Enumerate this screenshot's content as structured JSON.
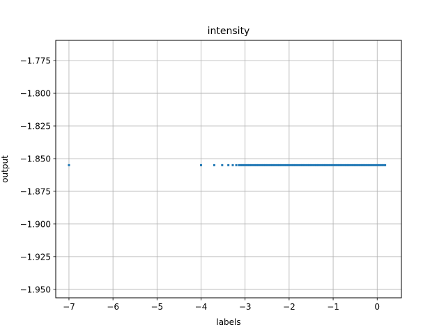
{
  "chart_data": {
    "type": "scatter",
    "title": "intensity",
    "xlabel": "labels",
    "ylabel": "output",
    "xlim": [
      -7.3,
      0.55
    ],
    "ylim": [
      -1.9565,
      -1.7595
    ],
    "grid": true,
    "x_ticks": [
      -7,
      -6,
      -5,
      -4,
      -3,
      -2,
      -1,
      0
    ],
    "x_tick_labels": [
      "−7",
      "−6",
      "−5",
      "−4",
      "−3",
      "−2",
      "−1",
      "0"
    ],
    "y_ticks": [
      -1.775,
      -1.8,
      -1.825,
      -1.85,
      -1.875,
      -1.9,
      -1.925,
      -1.95
    ],
    "y_tick_labels": [
      "−1.775",
      "−1.800",
      "−1.825",
      "−1.850",
      "−1.875",
      "−1.900",
      "−1.925",
      "−1.950"
    ],
    "series": [
      {
        "color": "#1f77b4",
        "x": [
          -7.0,
          -4.0,
          -3.7,
          -3.52,
          -3.38,
          -3.28,
          -3.2,
          -3.14,
          -3.1,
          -3.06,
          -3.02,
          -2.98,
          -2.94,
          -2.9,
          -2.86,
          -2.82,
          -2.78,
          -2.74,
          -2.7,
          -2.66,
          -2.62,
          -2.58,
          -2.54,
          -2.5,
          -2.46,
          -2.42,
          -2.38,
          -2.34,
          -2.3,
          -2.26,
          -2.22,
          -2.18,
          -2.14,
          -2.1,
          -2.06,
          -2.02,
          -1.98,
          -1.94,
          -1.9,
          -1.86,
          -1.82,
          -1.78,
          -1.74,
          -1.7,
          -1.66,
          -1.62,
          -1.58,
          -1.54,
          -1.5,
          -1.46,
          -1.42,
          -1.38,
          -1.34,
          -1.3,
          -1.26,
          -1.22,
          -1.18,
          -1.14,
          -1.1,
          -1.06,
          -1.02,
          -0.98,
          -0.94,
          -0.9,
          -0.86,
          -0.82,
          -0.78,
          -0.74,
          -0.7,
          -0.66,
          -0.62,
          -0.58,
          -0.54,
          -0.5,
          -0.46,
          -0.42,
          -0.38,
          -0.34,
          -0.3,
          -0.26,
          -0.22,
          -0.18,
          -0.14,
          -0.1,
          -0.06,
          -0.02,
          0.02,
          0.06,
          0.1,
          0.14,
          0.18
        ],
        "y_value": -1.855
      }
    ]
  }
}
